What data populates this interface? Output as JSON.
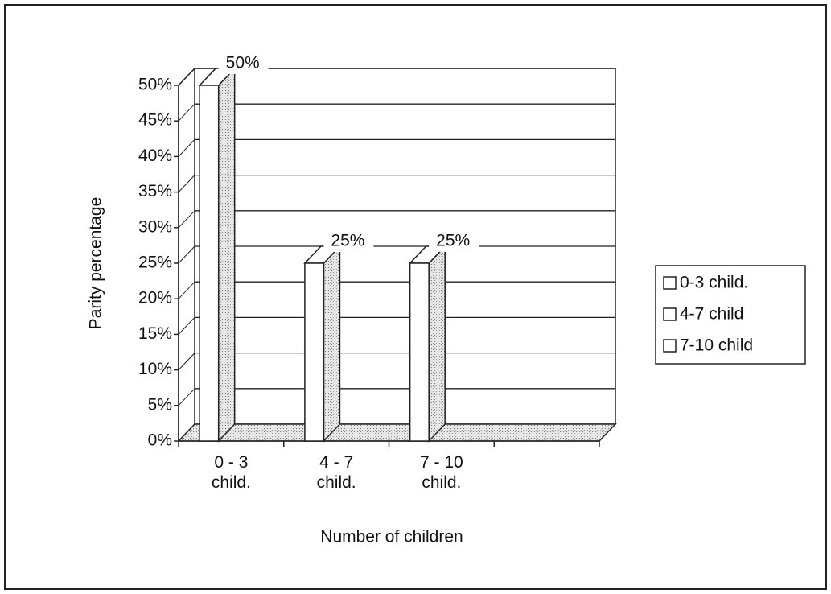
{
  "chart_data": {
    "type": "bar3d",
    "xlabel": "Number of children",
    "ylabel": "Parity percentage",
    "categories": [
      "0 - 3 child.",
      "4 - 7 child.",
      "7 - 10 child.",
      null
    ],
    "series": [
      {
        "name": "0-3 child.",
        "color": "#ffffff",
        "values": [
          50,
          null,
          null,
          null
        ],
        "value_labels": [
          "50%",
          null,
          null,
          null
        ]
      },
      {
        "name": "4-7 child",
        "color": "#ffffff",
        "values": [
          null,
          25,
          null,
          null
        ],
        "value_labels": [
          null,
          "25%",
          null,
          null
        ]
      },
      {
        "name": "7-10 child",
        "color": "#ffffff",
        "values": [
          null,
          null,
          25,
          null
        ],
        "value_labels": [
          null,
          null,
          "25%",
          null
        ]
      }
    ],
    "ylim": [
      0,
      50
    ],
    "yticks": [
      {
        "value": 0,
        "label": "0%"
      },
      {
        "value": 5,
        "label": "5%"
      },
      {
        "value": 10,
        "label": "10%"
      },
      {
        "value": 15,
        "label": "15%"
      },
      {
        "value": 20,
        "label": "20%"
      },
      {
        "value": 25,
        "label": "25%"
      },
      {
        "value": 30,
        "label": "30%"
      },
      {
        "value": 35,
        "label": "35%"
      },
      {
        "value": 40,
        "label": "40%"
      },
      {
        "value": 45,
        "label": "45%"
      },
      {
        "value": 50,
        "label": "50%"
      }
    ],
    "grid": true,
    "legend": "right"
  }
}
